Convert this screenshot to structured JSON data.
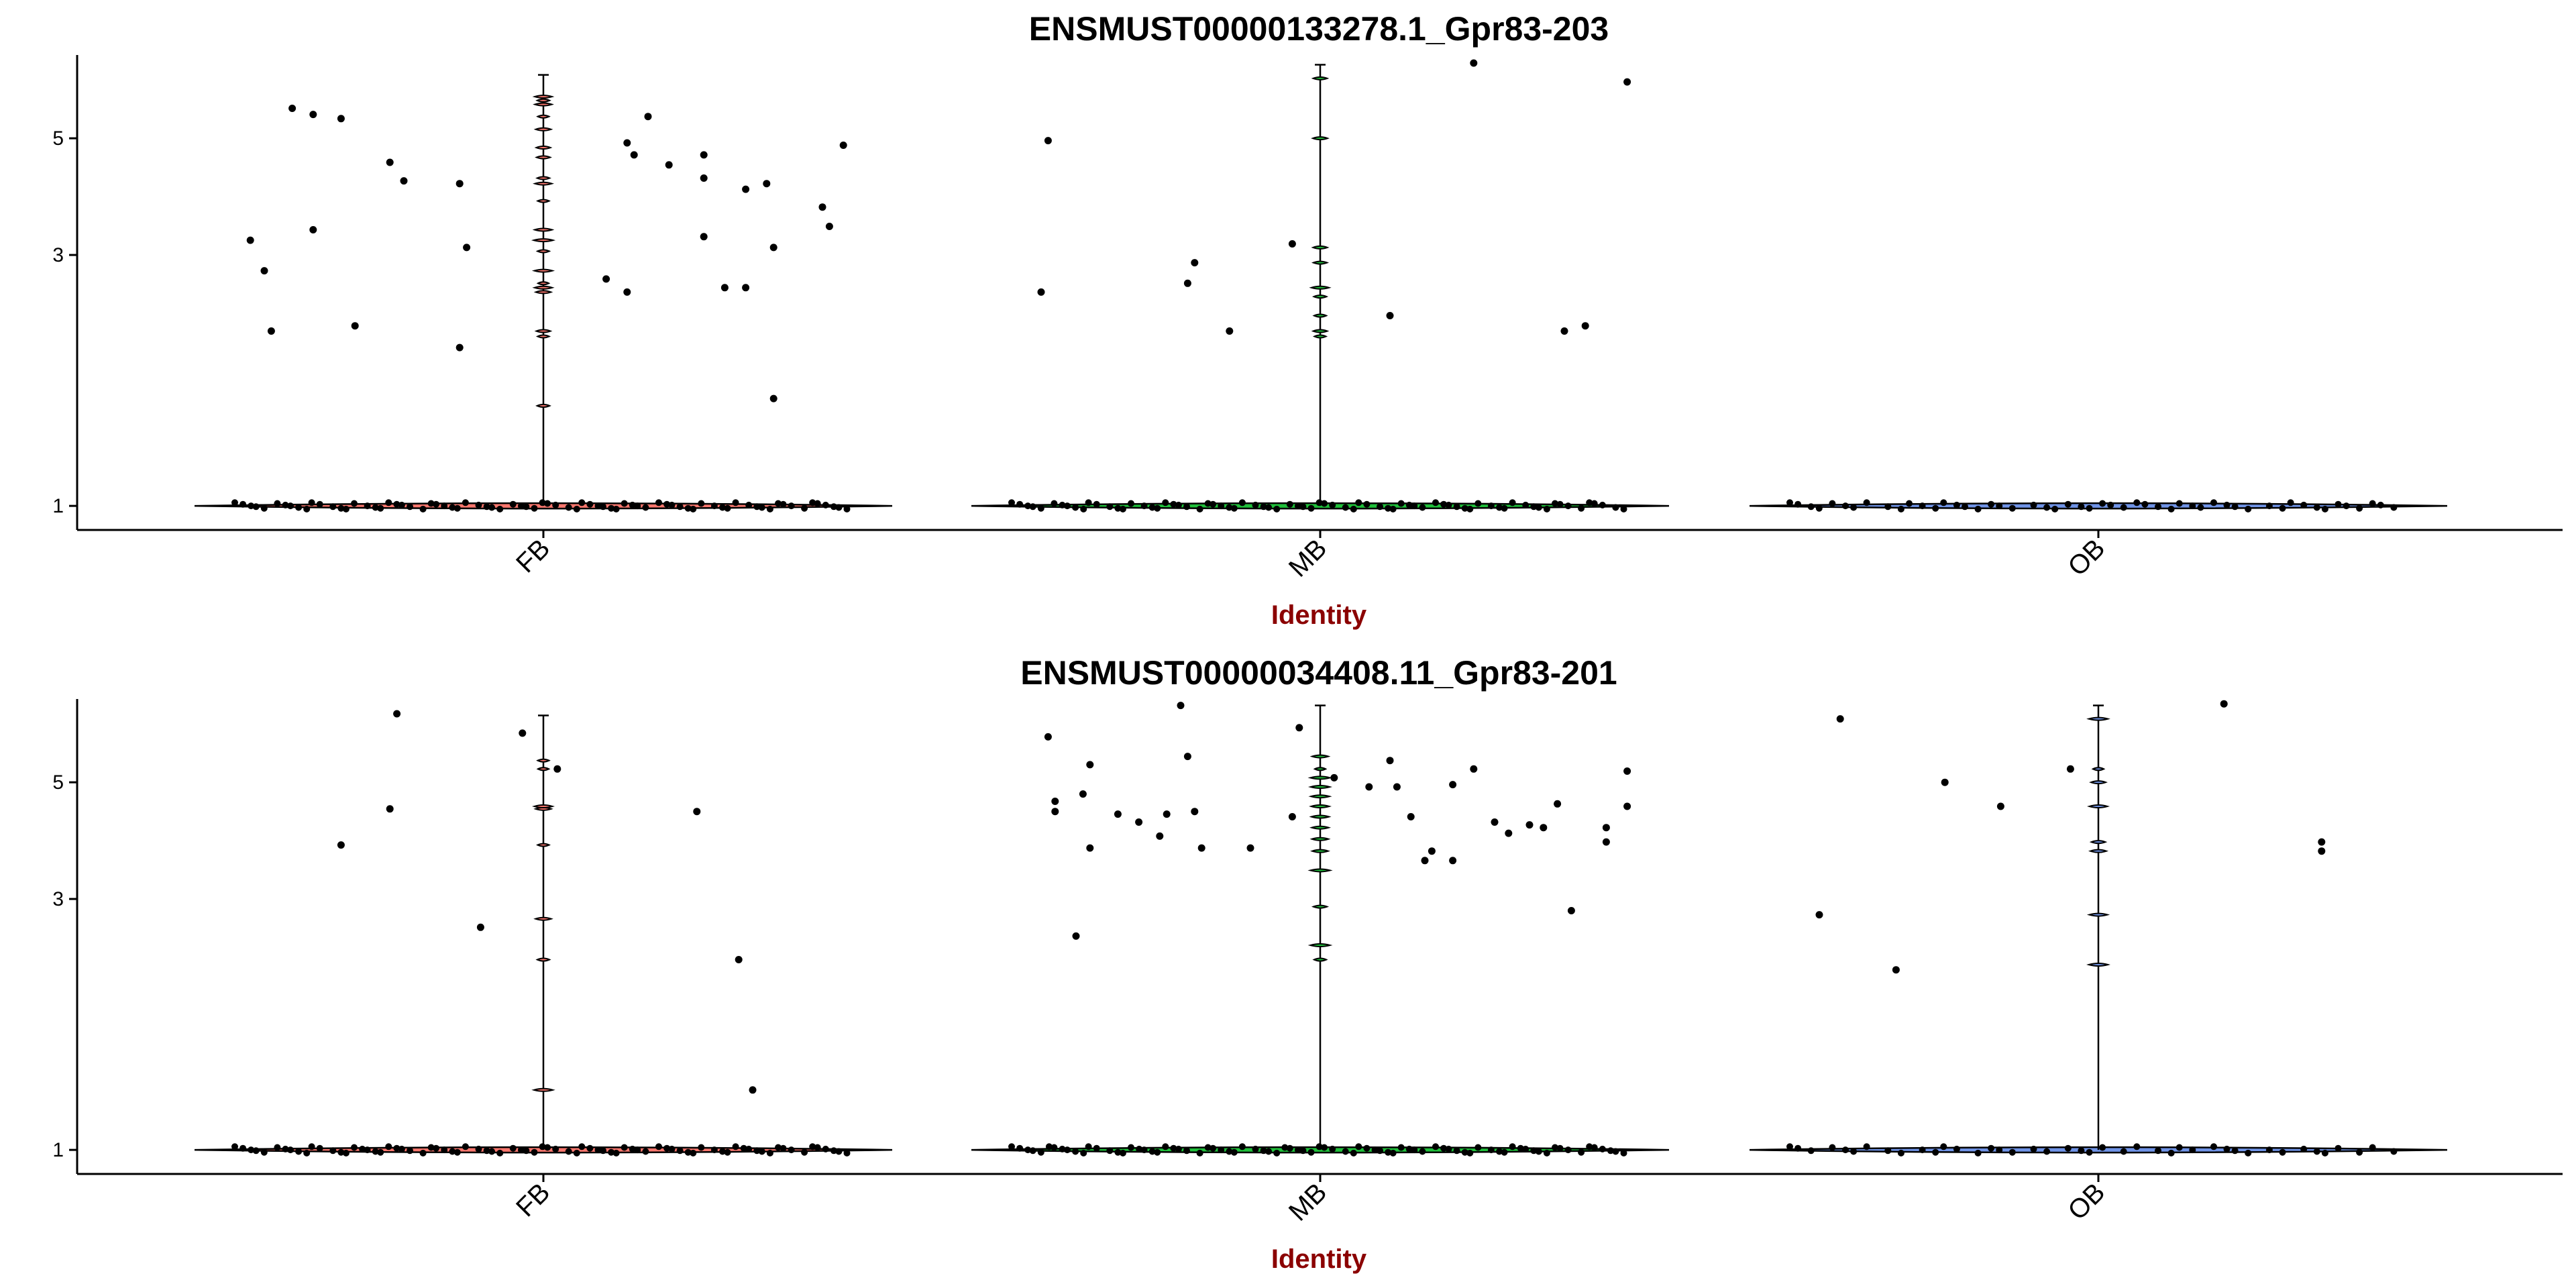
{
  "colors": {
    "FB": "#f8766d",
    "MB": "#1fbf3a",
    "OB": "#6f93e6",
    "point": "#000000",
    "xlabel": "#8b0000"
  },
  "chart_data": [
    {
      "type": "violin",
      "title": "ENSMUST00000133278.1_Gpr83-203",
      "xlabel": "Identity",
      "ylabel": "",
      "y_scale": "log",
      "ylim": [
        0.9,
        7.2
      ],
      "yticks": [
        {
          "value": 1,
          "label": "1"
        },
        {
          "value": 3,
          "label": "3"
        },
        {
          "value": 5,
          "label": "5"
        }
      ],
      "groups": [
        {
          "name": "FB",
          "max": 6.6,
          "zero_points": 78,
          "violin_levels": [
            1.55,
            2.1,
            2.15,
            2.55,
            2.6,
            2.65,
            2.8,
            3.05,
            3.2,
            3.35,
            3.8,
            4.1,
            4.2,
            4.6,
            4.8,
            5.2,
            5.5,
            5.8,
            5.9,
            6.0
          ],
          "points": [
            [
              0.08,
              3.2
            ],
            [
              0.1,
              2.8
            ],
            [
              0.11,
              2.15
            ],
            [
              0.14,
              5.7
            ],
            [
              0.17,
              3.35
            ],
            [
              0.17,
              5.55
            ],
            [
              0.21,
              5.45
            ],
            [
              0.23,
              2.2
            ],
            [
              0.28,
              4.5
            ],
            [
              0.3,
              4.15
            ],
            [
              0.38,
              4.1
            ],
            [
              0.39,
              3.1
            ],
            [
              0.38,
              2.0
            ],
            [
              0.59,
              2.7
            ],
            [
              0.62,
              2.55
            ],
            [
              0.62,
              4.9
            ],
            [
              0.63,
              4.65
            ],
            [
              0.65,
              5.5
            ],
            [
              0.68,
              4.45
            ],
            [
              0.73,
              4.65
            ],
            [
              0.73,
              4.2
            ],
            [
              0.73,
              3.25
            ],
            [
              0.76,
              2.6
            ],
            [
              0.79,
              2.6
            ],
            [
              0.79,
              4.0
            ],
            [
              0.82,
              4.1
            ],
            [
              0.83,
              3.1
            ],
            [
              0.83,
              1.6
            ],
            [
              0.9,
              3.7
            ],
            [
              0.91,
              3.4
            ],
            [
              0.93,
              4.85
            ]
          ]
        },
        {
          "name": "MB",
          "max": 6.9,
          "zero_points": 76,
          "violin_levels": [
            2.1,
            2.15,
            2.3,
            2.5,
            2.6,
            2.9,
            3.1,
            5.0,
            6.5
          ],
          "points": [
            [
              0.1,
              2.55
            ],
            [
              0.11,
              4.95
            ],
            [
              0.31,
              2.65
            ],
            [
              0.32,
              2.9
            ],
            [
              0.37,
              2.15
            ],
            [
              0.46,
              3.15
            ],
            [
              0.6,
              2.3
            ],
            [
              0.72,
              6.95
            ],
            [
              0.85,
              2.15
            ],
            [
              0.88,
              2.2
            ],
            [
              0.94,
              6.4
            ]
          ]
        },
        {
          "name": "OB",
          "max": 1.0,
          "zero_points": 52,
          "violin_levels": [],
          "points": []
        }
      ]
    },
    {
      "type": "violin",
      "title": "ENSMUST00000034408.11_Gpr83-201",
      "xlabel": "Identity",
      "ylabel": "",
      "y_scale": "log",
      "ylim": [
        0.9,
        7.2
      ],
      "yticks": [
        {
          "value": 1,
          "label": "1"
        },
        {
          "value": 3,
          "label": "3"
        },
        {
          "value": 5,
          "label": "5"
        }
      ],
      "groups": [
        {
          "name": "FB",
          "max": 6.7,
          "zero_points": 80,
          "violin_levels": [
            1.3,
            2.3,
            2.75,
            3.8,
            4.45,
            4.5,
            5.3,
            5.5
          ],
          "points": [
            [
              0.21,
              3.8
            ],
            [
              0.28,
              4.45
            ],
            [
              0.29,
              6.75
            ],
            [
              0.41,
              2.65
            ],
            [
              0.47,
              6.2
            ],
            [
              0.52,
              5.3
            ],
            [
              0.72,
              4.4
            ],
            [
              0.78,
              2.3
            ],
            [
              0.8,
              1.3
            ]
          ]
        },
        {
          "name": "MB",
          "max": 7.0,
          "zero_points": 82,
          "violin_levels": [
            2.3,
            2.45,
            2.9,
            3.4,
            3.7,
            3.9,
            4.1,
            4.3,
            4.5,
            4.7,
            4.9,
            5.1,
            5.3,
            5.6
          ],
          "points": [
            [
              0.11,
              6.1
            ],
            [
              0.12,
              4.6
            ],
            [
              0.12,
              4.4
            ],
            [
              0.15,
              2.55
            ],
            [
              0.16,
              4.75
            ],
            [
              0.17,
              5.4
            ],
            [
              0.17,
              3.75
            ],
            [
              0.21,
              4.35
            ],
            [
              0.24,
              4.2
            ],
            [
              0.27,
              3.95
            ],
            [
              0.28,
              4.35
            ],
            [
              0.3,
              7.0
            ],
            [
              0.31,
              5.6
            ],
            [
              0.32,
              4.4
            ],
            [
              0.33,
              3.75
            ],
            [
              0.4,
              3.75
            ],
            [
              0.46,
              4.3
            ],
            [
              0.47,
              6.35
            ],
            [
              0.52,
              5.1
            ],
            [
              0.57,
              4.9
            ],
            [
              0.6,
              5.5
            ],
            [
              0.61,
              4.9
            ],
            [
              0.63,
              4.3
            ],
            [
              0.65,
              3.55
            ],
            [
              0.66,
              3.7
            ],
            [
              0.69,
              3.55
            ],
            [
              0.69,
              4.95
            ],
            [
              0.72,
              5.3
            ],
            [
              0.75,
              4.2
            ],
            [
              0.77,
              4.0
            ],
            [
              0.8,
              4.15
            ],
            [
              0.82,
              4.1
            ],
            [
              0.84,
              4.55
            ],
            [
              0.86,
              2.85
            ],
            [
              0.91,
              3.85
            ],
            [
              0.91,
              4.1
            ],
            [
              0.94,
              5.25
            ],
            [
              0.94,
              4.5
            ]
          ]
        },
        {
          "name": "OB",
          "max": 7.0,
          "zero_points": 42,
          "violin_levels": [
            2.25,
            2.8,
            3.7,
            3.85,
            4.5,
            5.0,
            5.3,
            6.6
          ],
          "points": [
            [
              0.1,
              2.8
            ],
            [
              0.13,
              6.6
            ],
            [
              0.21,
              2.2
            ],
            [
              0.28,
              5.0
            ],
            [
              0.36,
              4.5
            ],
            [
              0.46,
              5.3
            ],
            [
              0.68,
              7.05
            ],
            [
              0.82,
              3.85
            ],
            [
              0.82,
              3.7
            ]
          ]
        }
      ]
    }
  ]
}
